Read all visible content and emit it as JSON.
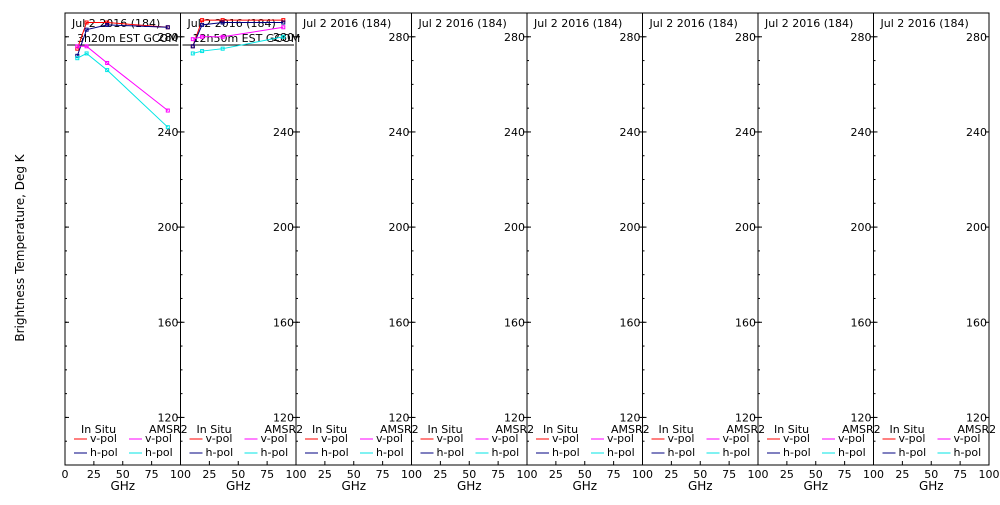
{
  "ylabel": "Brightness Temperature, Deg K",
  "colors": {
    "insitu_v": "#ff0000",
    "insitu_h": "#000080",
    "amsr2_v": "#ff00ff",
    "amsr2_h": "#00e5e5",
    "axis": "#000000"
  },
  "chart_data": [
    {
      "type": "line",
      "title": "Jul 2 2016 (184)",
      "subtitle": "3h20m EST GCOM",
      "xlabel": "GHz",
      "xlim": [
        0,
        100
      ],
      "ylim": [
        100,
        290
      ],
      "x_ticks": [
        "0",
        "25",
        "50",
        "75",
        "100"
      ],
      "y_ticks": [
        "120",
        "160",
        "200",
        "240",
        "280"
      ],
      "legend": {
        "insitu_title": "In Situ",
        "amsr2_title": "AMSR2",
        "v_label": "v-pol",
        "h_label": "h-pol"
      },
      "series": [
        {
          "name": "In Situ v-pol",
          "color_key": "insitu_v",
          "x": [
            10.65,
            18.7,
            36.5,
            89.0
          ],
          "y": [
            275,
            286,
            286,
            284
          ]
        },
        {
          "name": "In Situ h-pol",
          "color_key": "insitu_h",
          "x": [
            10.65,
            18.7,
            36.5,
            89.0
          ],
          "y": [
            272,
            283,
            285,
            284
          ]
        },
        {
          "name": "AMSR2 v-pol",
          "color_key": "amsr2_v",
          "x": [
            10.65,
            18.7,
            36.5,
            89.0
          ],
          "y": [
            276,
            276,
            269,
            249
          ]
        },
        {
          "name": "AMSR2 h-pol",
          "color_key": "amsr2_h",
          "x": [
            10.65,
            18.7,
            36.5,
            89.0
          ],
          "y": [
            271,
            273,
            266,
            242
          ]
        }
      ]
    },
    {
      "type": "line",
      "title": "Jul 2 2016 (184)",
      "subtitle": "12h50m EST GCOM",
      "xlabel": "GHz",
      "xlim": [
        0,
        100
      ],
      "ylim": [
        100,
        290
      ],
      "x_ticks": [
        "25",
        "50",
        "75",
        "100"
      ],
      "y_ticks": [
        "120",
        "160",
        "200",
        "240",
        "280"
      ],
      "legend": {
        "insitu_title": "In Situ",
        "amsr2_title": "AMSR2",
        "v_label": "v-pol",
        "h_label": "h-pol"
      },
      "series": [
        {
          "name": "In Situ v-pol",
          "color_key": "insitu_v",
          "x": [
            10.65,
            18.7,
            36.5,
            89.0
          ],
          "y": [
            276,
            287,
            287,
            287
          ]
        },
        {
          "name": "In Situ h-pol",
          "color_key": "insitu_h",
          "x": [
            10.65,
            18.7,
            36.5,
            89.0
          ],
          "y": [
            276,
            285,
            286,
            286
          ]
        },
        {
          "name": "AMSR2 v-pol",
          "color_key": "amsr2_v",
          "x": [
            10.65,
            18.7,
            36.5,
            89.0
          ],
          "y": [
            279,
            280,
            280,
            284
          ]
        },
        {
          "name": "AMSR2 h-pol",
          "color_key": "amsr2_h",
          "x": [
            10.65,
            18.7,
            36.5,
            89.0
          ],
          "y": [
            273,
            274,
            275,
            280
          ]
        }
      ]
    },
    {
      "type": "line",
      "title": "Jul 2 2016 (184)",
      "xlabel": "GHz",
      "xlim": [
        0,
        100
      ],
      "ylim": [
        100,
        290
      ],
      "x_ticks": [
        "25",
        "50",
        "75",
        "100"
      ],
      "y_ticks": [
        "120",
        "160",
        "200",
        "240",
        "280"
      ],
      "legend": {
        "insitu_title": "In Situ",
        "amsr2_title": "AMSR2",
        "v_label": "v-pol",
        "h_label": "h-pol"
      },
      "series": []
    },
    {
      "type": "line",
      "title": "Jul 2 2016 (184)",
      "xlabel": "GHz",
      "xlim": [
        0,
        100
      ],
      "ylim": [
        100,
        290
      ],
      "x_ticks": [
        "25",
        "50",
        "75",
        "100"
      ],
      "y_ticks": [
        "120",
        "160",
        "200",
        "240",
        "280"
      ],
      "legend": {
        "insitu_title": "In Situ",
        "amsr2_title": "AMSR2",
        "v_label": "v-pol",
        "h_label": "h-pol"
      },
      "series": []
    },
    {
      "type": "line",
      "title": "Jul 2 2016 (184)",
      "xlabel": "GHz",
      "xlim": [
        0,
        100
      ],
      "ylim": [
        100,
        290
      ],
      "x_ticks": [
        "25",
        "50",
        "75",
        "100"
      ],
      "y_ticks": [
        "120",
        "160",
        "200",
        "240",
        "280"
      ],
      "legend": {
        "insitu_title": "In Situ",
        "amsr2_title": "AMSR2",
        "v_label": "v-pol",
        "h_label": "h-pol"
      },
      "series": []
    },
    {
      "type": "line",
      "title": "Jul 2 2016 (184)",
      "xlabel": "GHz",
      "xlim": [
        0,
        100
      ],
      "ylim": [
        100,
        290
      ],
      "x_ticks": [
        "25",
        "50",
        "75",
        "100"
      ],
      "y_ticks": [
        "120",
        "160",
        "200",
        "240",
        "280"
      ],
      "legend": {
        "insitu_title": "In Situ",
        "amsr2_title": "AMSR2",
        "v_label": "v-pol",
        "h_label": "h-pol"
      },
      "series": []
    },
    {
      "type": "line",
      "title": "Jul 2 2016 (184)",
      "xlabel": "GHz",
      "xlim": [
        0,
        100
      ],
      "ylim": [
        100,
        290
      ],
      "x_ticks": [
        "25",
        "50",
        "75",
        "100"
      ],
      "y_ticks": [
        "120",
        "160",
        "200",
        "240",
        "280"
      ],
      "legend": {
        "insitu_title": "In Situ",
        "amsr2_title": "AMSR2",
        "v_label": "v-pol",
        "h_label": "h-pol"
      },
      "series": []
    },
    {
      "type": "line",
      "title": "Jul 2 2016 (184)",
      "xlabel": "GHz",
      "xlim": [
        0,
        100
      ],
      "ylim": [
        100,
        290
      ],
      "x_ticks": [
        "25",
        "50",
        "75",
        "100"
      ],
      "y_ticks": [
        "120",
        "160",
        "200",
        "240",
        "280"
      ],
      "legend": {
        "insitu_title": "In Situ",
        "amsr2_title": "AMSR2",
        "v_label": "v-pol",
        "h_label": "h-pol"
      },
      "series": []
    }
  ]
}
